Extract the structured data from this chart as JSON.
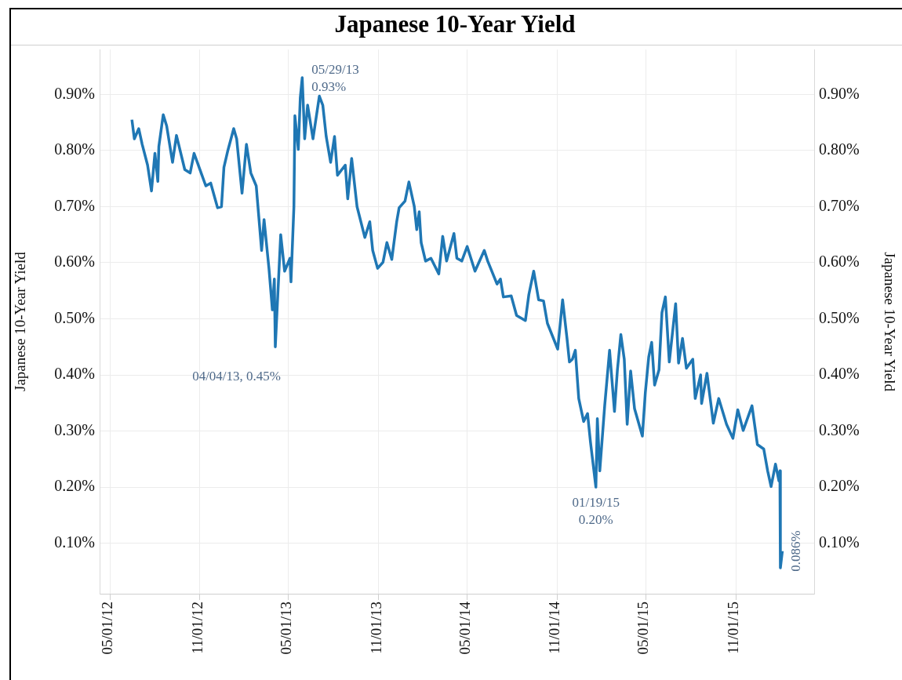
{
  "chart_data": {
    "type": "line",
    "title": "Japanese 10-Year Yield",
    "ylabel": "Japanese 10-Year Yield",
    "y2label": "Japanese 10-Year Yield",
    "x": [
      "2012-06-15",
      "2012-06-20",
      "2012-06-29",
      "2012-07-06",
      "2012-07-17",
      "2012-07-25",
      "2012-08-01",
      "2012-08-07",
      "2012-08-09",
      "2012-08-18",
      "2012-08-25",
      "2012-09-06",
      "2012-09-14",
      "2012-10-01",
      "2012-10-12",
      "2012-10-20",
      "2012-11-13",
      "2012-11-23",
      "2012-12-07",
      "2012-12-15",
      "2012-12-20",
      "2012-12-28",
      "2013-01-09",
      "2013-01-15",
      "2013-01-26",
      "2013-02-04",
      "2013-02-13",
      "2013-02-24",
      "2013-03-07",
      "2013-03-12",
      "2013-03-22",
      "2013-03-29",
      "2013-04-02",
      "2013-04-04",
      "2013-04-15",
      "2013-04-23",
      "2013-05-04",
      "2013-05-06",
      "2013-05-12",
      "2013-05-14",
      "2013-05-21",
      "2013-05-25",
      "2013-05-29",
      "2013-06-03",
      "2013-06-09",
      "2013-06-20",
      "2013-07-03",
      "2013-07-10",
      "2013-07-17",
      "2013-07-26",
      "2013-08-03",
      "2013-08-09",
      "2013-08-25",
      "2013-08-30",
      "2013-09-07",
      "2013-09-18",
      "2013-10-04",
      "2013-10-14",
      "2013-10-20",
      "2013-10-30",
      "2013-11-10",
      "2013-11-18",
      "2013-11-28",
      "2013-12-08",
      "2013-12-13",
      "2013-12-25",
      "2014-01-02",
      "2014-01-13",
      "2014-01-18",
      "2014-01-23",
      "2014-01-27",
      "2014-02-05",
      "2014-02-16",
      "2014-03-04",
      "2014-03-12",
      "2014-03-20",
      "2014-04-04",
      "2014-04-10",
      "2014-04-20",
      "2014-05-01",
      "2014-05-17",
      "2014-06-05",
      "2014-06-12",
      "2014-07-01",
      "2014-07-08",
      "2014-07-14",
      "2014-07-30",
      "2014-08-10",
      "2014-08-28",
      "2014-09-04",
      "2014-09-14",
      "2014-09-24",
      "2014-10-04",
      "2014-10-12",
      "2014-11-02",
      "2014-11-12",
      "2014-11-21",
      "2014-11-26",
      "2014-12-02",
      "2014-12-08",
      "2014-12-15",
      "2014-12-25",
      "2015-01-02",
      "2015-01-08",
      "2015-01-19",
      "2015-01-22",
      "2015-01-27",
      "2015-02-06",
      "2015-02-16",
      "2015-02-26",
      "2015-03-04",
      "2015-03-11",
      "2015-03-18",
      "2015-03-24",
      "2015-03-31",
      "2015-04-08",
      "2015-04-24",
      "2015-04-30",
      "2015-05-07",
      "2015-05-13",
      "2015-05-19",
      "2015-05-28",
      "2015-06-03",
      "2015-06-10",
      "2015-06-18",
      "2015-07-01",
      "2015-07-07",
      "2015-07-15",
      "2015-07-23",
      "2015-08-05",
      "2015-08-10",
      "2015-08-21",
      "2015-08-23",
      "2015-09-03",
      "2015-09-16",
      "2015-09-27",
      "2015-10-13",
      "2015-10-26",
      "2015-11-05",
      "2015-11-16",
      "2015-12-04",
      "2015-12-15",
      "2015-12-28",
      "2016-01-05",
      "2016-01-12",
      "2016-01-21",
      "2016-01-28",
      "2016-01-30",
      "2016-01-31",
      "2016-02-04"
    ],
    "series": [
      {
        "color": "#1f77b4",
        "values": [
          0.855,
          0.821,
          0.839,
          0.811,
          0.774,
          0.728,
          0.795,
          0.745,
          0.807,
          0.864,
          0.844,
          0.779,
          0.827,
          0.766,
          0.76,
          0.795,
          0.737,
          0.742,
          0.698,
          0.7,
          0.77,
          0.8,
          0.839,
          0.821,
          0.724,
          0.811,
          0.76,
          0.737,
          0.622,
          0.677,
          0.59,
          0.516,
          0.571,
          0.45,
          0.65,
          0.585,
          0.608,
          0.566,
          0.7,
          0.862,
          0.802,
          0.894,
          0.93,
          0.821,
          0.881,
          0.821,
          0.897,
          0.881,
          0.825,
          0.779,
          0.825,
          0.756,
          0.774,
          0.714,
          0.786,
          0.7,
          0.645,
          0.673,
          0.622,
          0.59,
          0.601,
          0.636,
          0.606,
          0.673,
          0.698,
          0.71,
          0.744,
          0.7,
          0.659,
          0.691,
          0.636,
          0.603,
          0.608,
          0.58,
          0.647,
          0.603,
          0.652,
          0.608,
          0.603,
          0.629,
          0.585,
          0.622,
          0.603,
          0.562,
          0.571,
          0.539,
          0.541,
          0.506,
          0.497,
          0.543,
          0.585,
          0.534,
          0.532,
          0.492,
          0.446,
          0.534,
          0.465,
          0.423,
          0.428,
          0.444,
          0.358,
          0.317,
          0.331,
          0.28,
          0.2,
          0.322,
          0.229,
          0.345,
          0.444,
          0.335,
          0.409,
          0.472,
          0.428,
          0.312,
          0.407,
          0.34,
          0.291,
          0.368,
          0.432,
          0.458,
          0.382,
          0.409,
          0.511,
          0.539,
          0.423,
          0.527,
          0.421,
          0.465,
          0.412,
          0.428,
          0.358,
          0.4,
          0.349,
          0.403,
          0.314,
          0.358,
          0.312,
          0.287,
          0.338,
          0.301,
          0.345,
          0.276,
          0.268,
          0.229,
          0.201,
          0.241,
          0.211,
          0.229,
          0.056,
          0.086
        ]
      }
    ],
    "xlim": [
      "2012-04-10",
      "2016-04-09"
    ],
    "xticks": [
      {
        "value": "2012-05-01",
        "label": "05/01/12"
      },
      {
        "value": "2012-11-01",
        "label": "11/01/12"
      },
      {
        "value": "2013-05-01",
        "label": "05/01/13"
      },
      {
        "value": "2013-11-01",
        "label": "11/01/13"
      },
      {
        "value": "2014-05-01",
        "label": "05/01/14"
      },
      {
        "value": "2014-11-01",
        "label": "11/01/14"
      },
      {
        "value": "2015-05-01",
        "label": "05/01/15"
      },
      {
        "value": "2015-11-01",
        "label": "11/01/15"
      }
    ],
    "ylim": [
      0.01,
      0.98
    ],
    "yticks": [
      {
        "value": 0.1,
        "label": "0.10%"
      },
      {
        "value": 0.2,
        "label": "0.20%"
      },
      {
        "value": 0.3,
        "label": "0.30%"
      },
      {
        "value": 0.4,
        "label": "0.40%"
      },
      {
        "value": 0.5,
        "label": "0.50%"
      },
      {
        "value": 0.6,
        "label": "0.60%"
      },
      {
        "value": 0.7,
        "label": "0.70%"
      },
      {
        "value": 0.8,
        "label": "0.80%"
      },
      {
        "value": 0.9,
        "label": "0.90%"
      }
    ],
    "y2lim": [
      0.01,
      0.98
    ],
    "y2ticks": [
      {
        "value": 0.1,
        "label": "0.10%"
      },
      {
        "value": 0.2,
        "label": "0.20%"
      },
      {
        "value": 0.3,
        "label": "0.30%"
      },
      {
        "value": 0.4,
        "label": "0.40%"
      },
      {
        "value": 0.5,
        "label": "0.50%"
      },
      {
        "value": 0.6,
        "label": "0.60%"
      },
      {
        "value": 0.7,
        "label": "0.70%"
      },
      {
        "value": 0.8,
        "label": "0.80%"
      },
      {
        "value": 0.9,
        "label": "0.90%"
      }
    ],
    "annotations": [
      {
        "text": "04/04/13, 0.45%",
        "x": "2013-04-04",
        "y": 0.45
      },
      {
        "text": "05/29/13\n0.93%",
        "x": "2013-05-29",
        "y": 0.93
      },
      {
        "text": "01/19/15\n0.20%",
        "x": "2015-01-19",
        "y": 0.2
      },
      {
        "text": "0.086%",
        "x": "2016-02-04",
        "y": 0.086
      }
    ],
    "grid": true
  }
}
